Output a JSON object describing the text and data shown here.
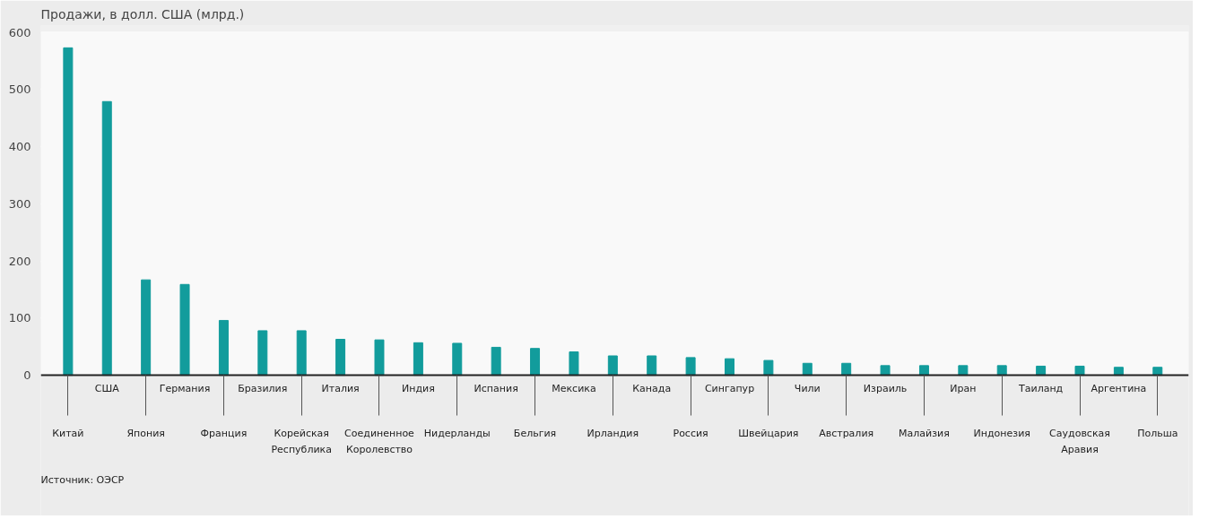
{
  "chart_data": {
    "type": "bar",
    "title": "Продажи, в долл. США (млрд.)",
    "categories": [
      "Китай",
      "США",
      "Япония",
      "Германия",
      "Франция",
      "Бразилия",
      "Корейская\nРеспублика",
      "Италия",
      "Соединенное\nКоролевство",
      "Индия",
      "Нидерланды",
      "Испания",
      "Бельгия",
      "Мексика",
      "Ирландия",
      "Канада",
      "Россия",
      "Сингапур",
      "Швейцария",
      "Чили",
      "Австралия",
      "Израиль",
      "Малайзия",
      "Иран",
      "Индонезия",
      "Таиланд",
      "Саудовская\nАравия",
      "Аргентина",
      "Польша"
    ],
    "values": [
      573,
      479,
      167,
      159,
      96,
      78,
      78,
      63,
      62,
      57,
      56,
      49,
      47,
      41,
      34,
      34,
      31,
      29,
      26,
      21,
      21,
      17,
      17,
      17,
      17,
      16,
      16,
      14,
      14
    ],
    "color": "#129c9c",
    "ylim": [
      0,
      600
    ],
    "yticks": [
      0,
      100,
      200,
      300,
      400,
      500,
      600
    ],
    "grid": "y",
    "annotations": [
      "Источник: ОЭСР"
    ]
  }
}
